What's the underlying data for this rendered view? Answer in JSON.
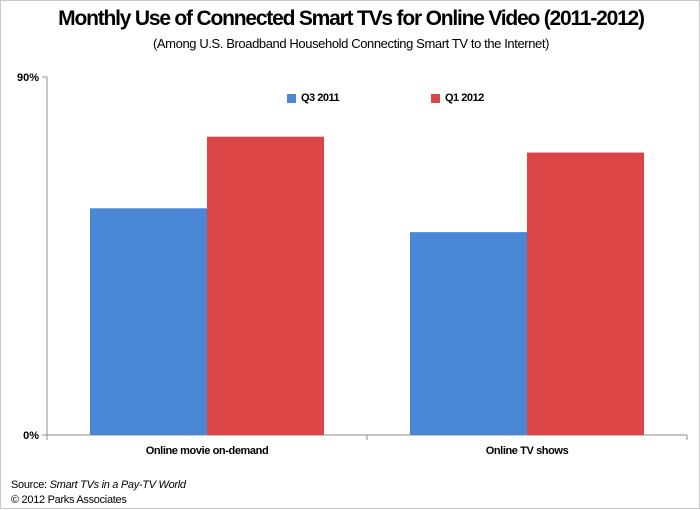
{
  "colors": {
    "q3_2011": "#4a88d6",
    "q1_2012": "#db4545",
    "axis": "#8c8c8c"
  },
  "chart_data": {
    "type": "bar",
    "title": "Monthly Use of Connected Smart TVs for Online Video (2011-2012)",
    "subtitle": "(Among U.S. Broadband Household Connecting Smart TV to the Internet)",
    "categories": [
      "Online movie on-demand",
      "Online TV shows"
    ],
    "series": [
      {
        "name": "Q3 2011",
        "values": [
          57,
          51
        ]
      },
      {
        "name": "Q1 2012",
        "values": [
          75,
          71
        ]
      }
    ],
    "ylim": [
      0,
      90
    ],
    "yticks": [
      "0%",
      "90%"
    ],
    "grid": false,
    "legend_position": "top"
  },
  "source": {
    "prefix": "Source: ",
    "title": "Smart TVs in a Pay-TV World"
  },
  "copyright": "© 2012 Parks Associates"
}
